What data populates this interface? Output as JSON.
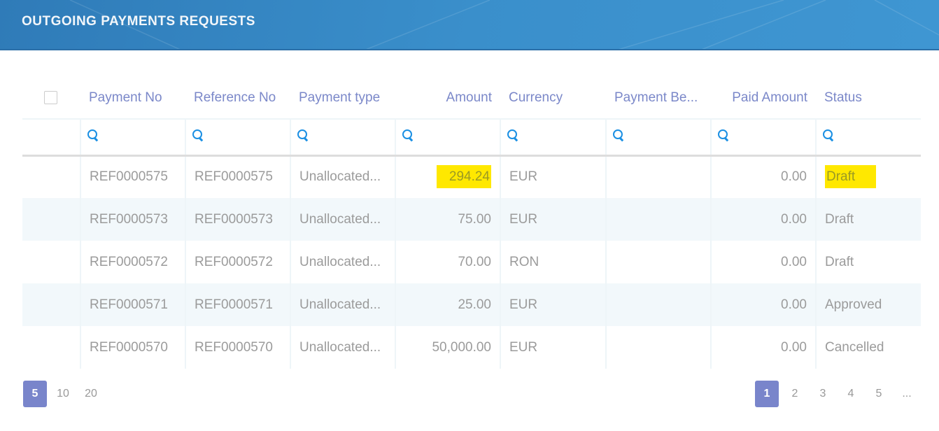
{
  "header": {
    "title": "OUTGOING PAYMENTS REQUESTS"
  },
  "columns": [
    "Payment No",
    "Reference No",
    "Payment type",
    "Amount",
    "Currency",
    "Payment Be...",
    "Paid Amount",
    "Status"
  ],
  "rows": [
    {
      "payment_no": "REF0000575",
      "reference_no": "REF0000575",
      "payment_type": "Unallocated...",
      "amount": "294.24",
      "currency": "EUR",
      "payment_be": "",
      "paid_amount": "0.00",
      "status": "Draft"
    },
    {
      "payment_no": "REF0000573",
      "reference_no": "REF0000573",
      "payment_type": "Unallocated...",
      "amount": "75.00",
      "currency": "EUR",
      "payment_be": "",
      "paid_amount": "0.00",
      "status": "Draft"
    },
    {
      "payment_no": "REF0000572",
      "reference_no": "REF0000572",
      "payment_type": "Unallocated...",
      "amount": "70.00",
      "currency": "RON",
      "payment_be": "",
      "paid_amount": "0.00",
      "status": "Draft"
    },
    {
      "payment_no": "REF0000571",
      "reference_no": "REF0000571",
      "payment_type": "Unallocated...",
      "amount": "25.00",
      "currency": "EUR",
      "payment_be": "",
      "paid_amount": "0.00",
      "status": "Approved"
    },
    {
      "payment_no": "REF0000570",
      "reference_no": "REF0000570",
      "payment_type": "Unallocated...",
      "amount": "50,000.00",
      "currency": "EUR",
      "payment_be": "",
      "paid_amount": "0.00",
      "status": "Cancelled"
    }
  ],
  "page_sizes": {
    "options": [
      "5",
      "10",
      "20"
    ],
    "selected": "5"
  },
  "pagination": {
    "pages": [
      "1",
      "2",
      "3",
      "4",
      "5"
    ],
    "more": "...",
    "current": "1"
  },
  "colors": {
    "accent": "#7985cb",
    "highlight": "#ffe800",
    "header_bg": "#3a8fcb",
    "filter_icon": "#1a8fe3"
  },
  "highlighted_cells": [
    "rows.0.amount",
    "rows.0.status"
  ]
}
